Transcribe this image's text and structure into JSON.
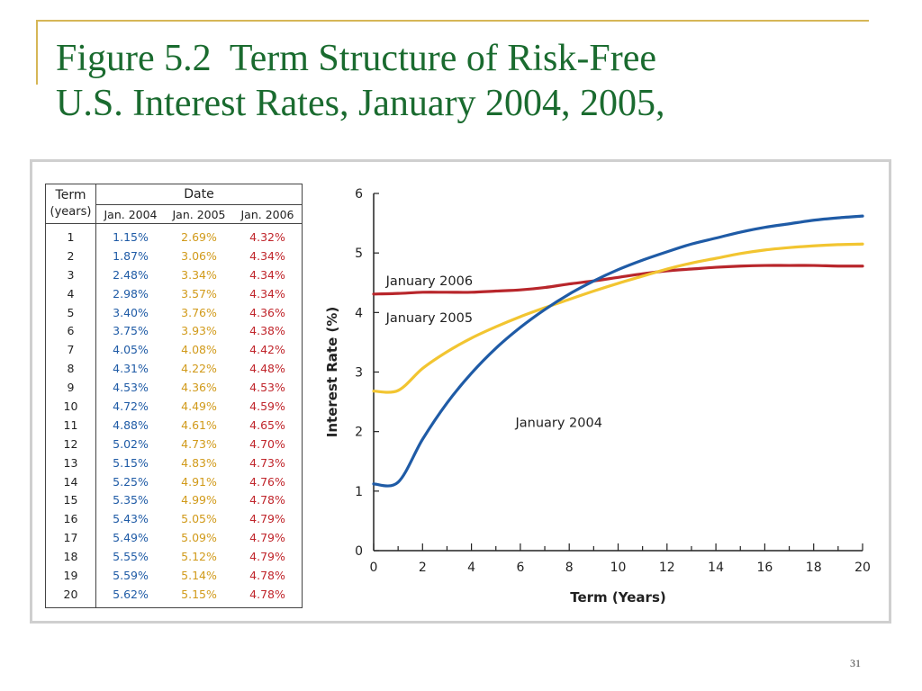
{
  "slide": {
    "title_line1": "Figure 5.2  Term Structure of Risk-Free",
    "title_line2": "U.S. Interest Rates, January 2004, 2005,",
    "page_number": "31"
  },
  "table": {
    "header_term": "Term",
    "header_years": "(years)",
    "header_date": "Date",
    "col_2004": "Jan. 2004",
    "col_2005": "Jan. 2005",
    "col_2006": "Jan. 2006",
    "rows": [
      {
        "term": "1",
        "y2004": "1.15%",
        "y2005": "2.69%",
        "y2006": "4.32%"
      },
      {
        "term": "2",
        "y2004": "1.87%",
        "y2005": "3.06%",
        "y2006": "4.34%"
      },
      {
        "term": "3",
        "y2004": "2.48%",
        "y2005": "3.34%",
        "y2006": "4.34%"
      },
      {
        "term": "4",
        "y2004": "2.98%",
        "y2005": "3.57%",
        "y2006": "4.34%"
      },
      {
        "term": "5",
        "y2004": "3.40%",
        "y2005": "3.76%",
        "y2006": "4.36%"
      },
      {
        "term": "6",
        "y2004": "3.75%",
        "y2005": "3.93%",
        "y2006": "4.38%"
      },
      {
        "term": "7",
        "y2004": "4.05%",
        "y2005": "4.08%",
        "y2006": "4.42%"
      },
      {
        "term": "8",
        "y2004": "4.31%",
        "y2005": "4.22%",
        "y2006": "4.48%"
      },
      {
        "term": "9",
        "y2004": "4.53%",
        "y2005": "4.36%",
        "y2006": "4.53%"
      },
      {
        "term": "10",
        "y2004": "4.72%",
        "y2005": "4.49%",
        "y2006": "4.59%"
      },
      {
        "term": "11",
        "y2004": "4.88%",
        "y2005": "4.61%",
        "y2006": "4.65%"
      },
      {
        "term": "12",
        "y2004": "5.02%",
        "y2005": "4.73%",
        "y2006": "4.70%"
      },
      {
        "term": "13",
        "y2004": "5.15%",
        "y2005": "4.83%",
        "y2006": "4.73%"
      },
      {
        "term": "14",
        "y2004": "5.25%",
        "y2005": "4.91%",
        "y2006": "4.76%"
      },
      {
        "term": "15",
        "y2004": "5.35%",
        "y2005": "4.99%",
        "y2006": "4.78%"
      },
      {
        "term": "16",
        "y2004": "5.43%",
        "y2005": "5.05%",
        "y2006": "4.79%"
      },
      {
        "term": "17",
        "y2004": "5.49%",
        "y2005": "5.09%",
        "y2006": "4.79%"
      },
      {
        "term": "18",
        "y2004": "5.55%",
        "y2005": "5.12%",
        "y2006": "4.79%"
      },
      {
        "term": "19",
        "y2004": "5.59%",
        "y2005": "5.14%",
        "y2006": "4.78%"
      },
      {
        "term": "20",
        "y2004": "5.62%",
        "y2005": "5.15%",
        "y2006": "4.78%"
      }
    ]
  },
  "chart_data": {
    "type": "line",
    "title": "",
    "xlabel": "Term (Years)",
    "ylabel": "Interest Rate (%)",
    "xlim": [
      0,
      20
    ],
    "ylim": [
      0,
      6
    ],
    "xticks": [
      0,
      2,
      4,
      6,
      8,
      10,
      12,
      14,
      16,
      18,
      20
    ],
    "yticks": [
      0,
      1,
      2,
      3,
      4,
      5,
      6
    ],
    "grid": false,
    "series": [
      {
        "name": "January 2004",
        "color": "#1f5ba6",
        "x": [
          0,
          1,
          2,
          3,
          4,
          5,
          6,
          7,
          8,
          9,
          10,
          11,
          12,
          13,
          14,
          15,
          16,
          17,
          18,
          19,
          20
        ],
        "y": [
          1.12,
          1.15,
          1.87,
          2.48,
          2.98,
          3.4,
          3.75,
          4.05,
          4.31,
          4.53,
          4.72,
          4.88,
          5.02,
          5.15,
          5.25,
          5.35,
          5.43,
          5.49,
          5.55,
          5.59,
          5.62
        ]
      },
      {
        "name": "January 2005",
        "color": "#f2c531",
        "x": [
          0,
          1,
          2,
          3,
          4,
          5,
          6,
          7,
          8,
          9,
          10,
          11,
          12,
          13,
          14,
          15,
          16,
          17,
          18,
          19,
          20
        ],
        "y": [
          2.68,
          2.69,
          3.06,
          3.34,
          3.57,
          3.76,
          3.93,
          4.08,
          4.22,
          4.36,
          4.49,
          4.61,
          4.73,
          4.83,
          4.91,
          4.99,
          5.05,
          5.09,
          5.12,
          5.14,
          5.15
        ]
      },
      {
        "name": "January 2006",
        "color": "#b8262b",
        "x": [
          0,
          1,
          2,
          3,
          4,
          5,
          6,
          7,
          8,
          9,
          10,
          11,
          12,
          13,
          14,
          15,
          16,
          17,
          18,
          19,
          20
        ],
        "y": [
          4.31,
          4.32,
          4.34,
          4.34,
          4.34,
          4.36,
          4.38,
          4.42,
          4.48,
          4.53,
          4.59,
          4.65,
          4.7,
          4.73,
          4.76,
          4.78,
          4.79,
          4.79,
          4.79,
          4.78,
          4.78
        ]
      }
    ]
  }
}
